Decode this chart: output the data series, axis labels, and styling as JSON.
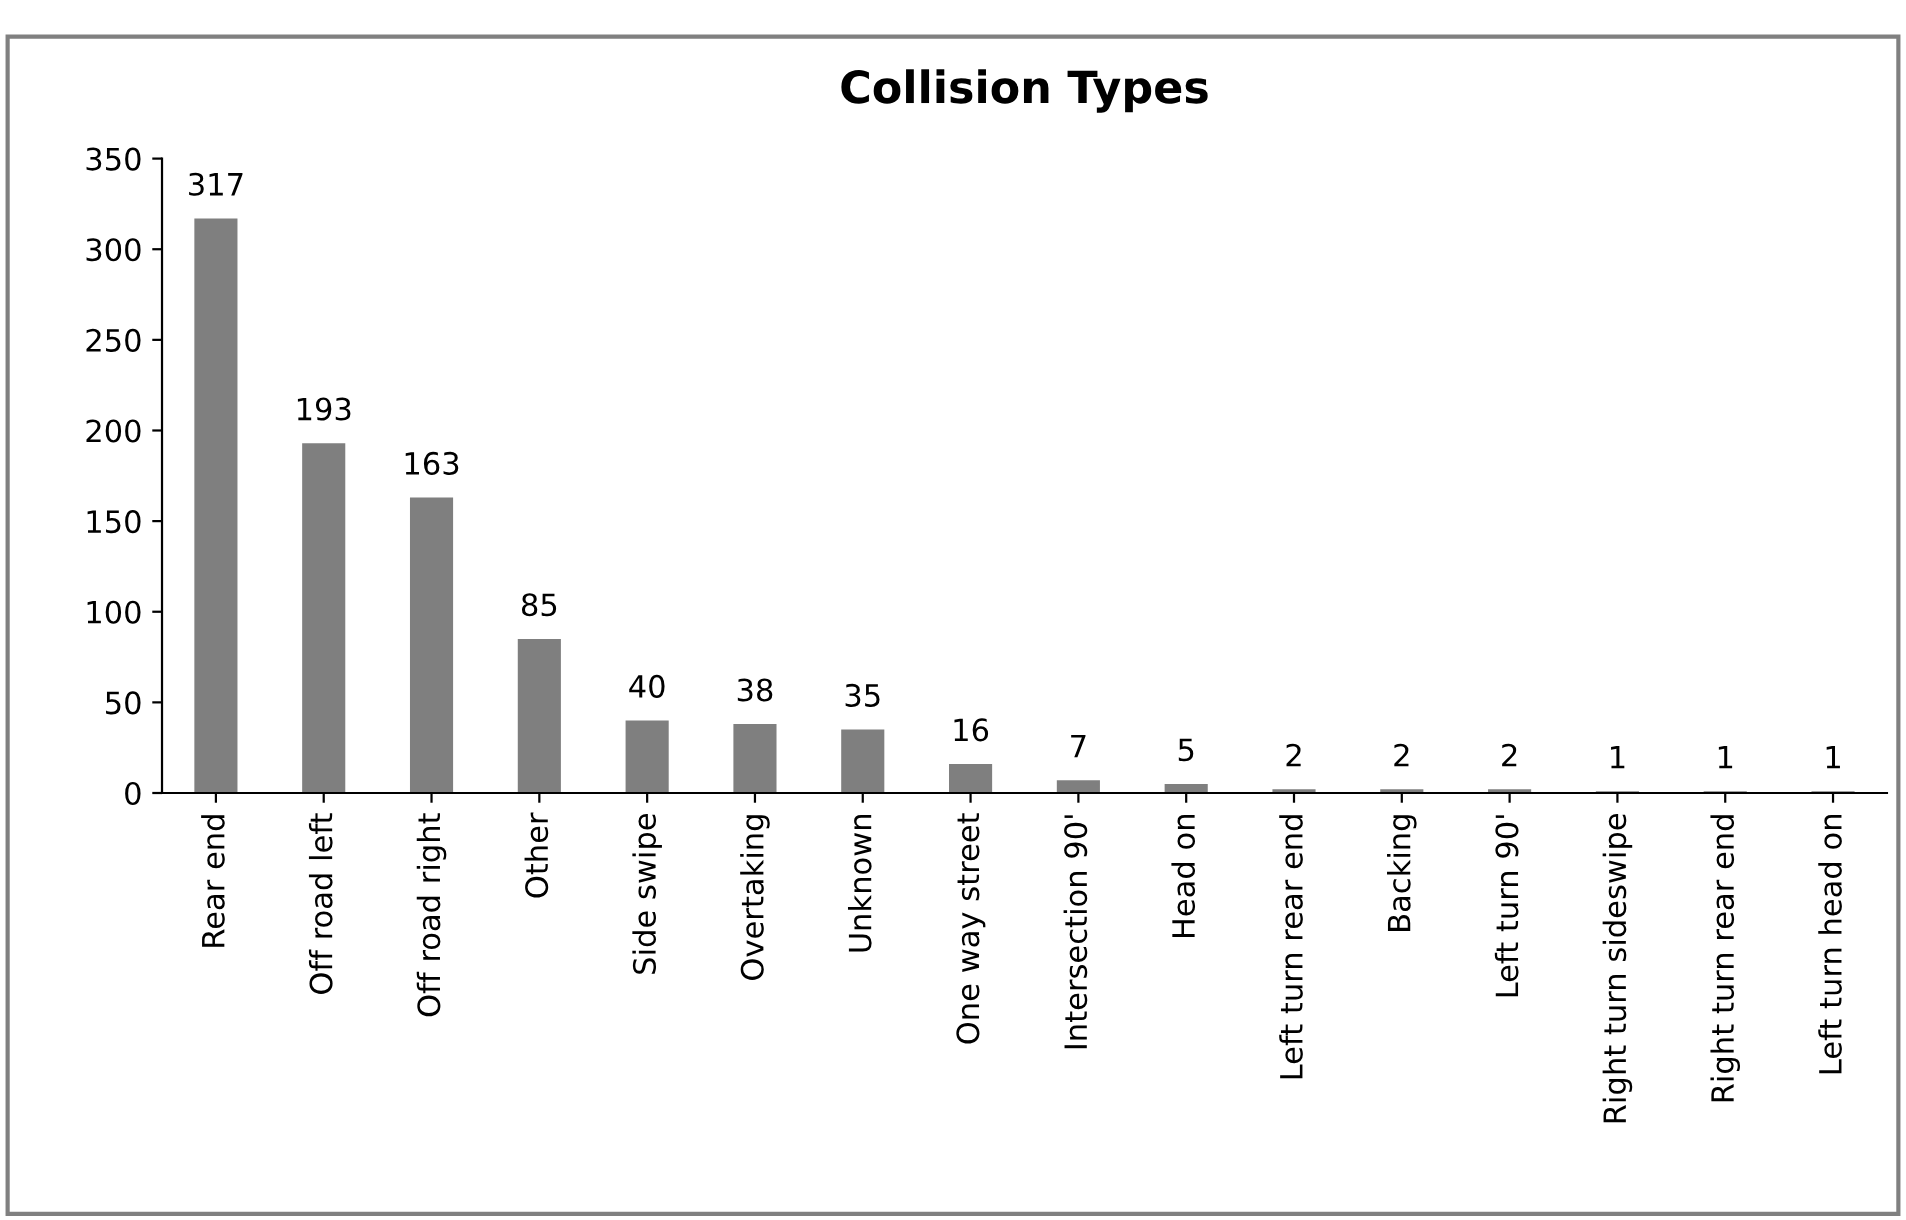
{
  "chart_data": {
    "type": "bar",
    "title": "Collision Types",
    "categories": [
      "Rear end",
      "Off road left",
      "Off road right",
      "Other",
      "Side swipe",
      "Overtaking",
      "Unknown",
      "One way street",
      "Intersection 90'",
      "Head on",
      "Left turn rear end",
      "Backing",
      "Left turn 90'",
      "Right turn sideswipe",
      "Right turn rear end",
      "Left turn head on"
    ],
    "values": [
      317,
      193,
      163,
      85,
      40,
      38,
      35,
      16,
      7,
      5,
      2,
      2,
      2,
      1,
      1,
      1
    ],
    "color": "#7f7f7f",
    "ylim": [
      0,
      350
    ],
    "yticks": [
      0,
      50,
      100,
      150,
      200,
      250,
      300,
      350
    ],
    "grid": false,
    "legend": false,
    "data_labels": true
  }
}
